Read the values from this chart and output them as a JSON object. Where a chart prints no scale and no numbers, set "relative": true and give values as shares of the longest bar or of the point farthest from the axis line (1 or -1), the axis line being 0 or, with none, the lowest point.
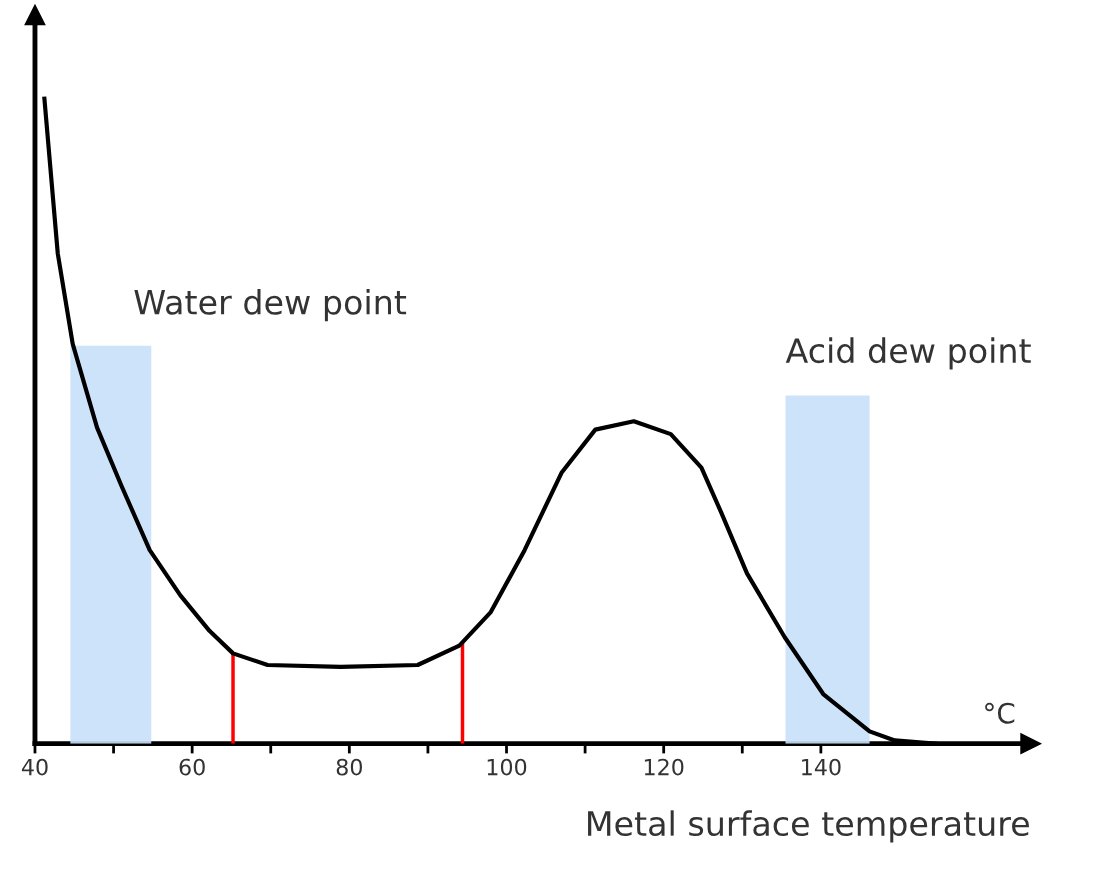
{
  "chart_data": {
    "type": "line",
    "relative": true,
    "xlabel": "Metal surface temperature",
    "annotations": [
      "°C"
    ],
    "x": [
      41.2,
      42.9,
      44.8,
      47.9,
      51.0,
      54.6,
      58.5,
      62.2,
      65.2,
      69.6,
      78.9,
      88.7,
      94.0,
      98.0,
      102.3,
      107.0,
      111.3,
      116.2,
      120.9,
      124.8,
      127.3,
      130.6,
      135.4,
      140.3,
      146.2,
      149.4,
      154.6
    ],
    "series": [
      {
        "color": "#000000",
        "values": [
          1.0,
          0.76,
          0.62,
          0.49,
          0.4,
          0.3,
          0.23,
          0.175,
          0.14,
          0.122,
          0.119,
          0.122,
          0.152,
          0.204,
          0.3,
          0.42,
          0.487,
          0.5,
          0.48,
          0.428,
          0.359,
          0.264,
          0.165,
          0.077,
          0.019,
          0.005,
          0.0
        ]
      }
    ],
    "xlim": [
      40,
      166.7
    ],
    "xticks": [
      40,
      {
        "value": 50,
        "label": null
      },
      60,
      {
        "value": 70,
        "label": null
      },
      80,
      {
        "value": 90,
        "label": null
      },
      100,
      {
        "value": 110,
        "label": null
      },
      120,
      {
        "value": 130,
        "label": null
      },
      140
    ],
    "bands": [
      {
        "axis": "x",
        "from": 44.5,
        "to": 54.8,
        "label": "Water dew point",
        "color": "#c6e0fa"
      },
      {
        "axis": "x",
        "from": 135.5,
        "to": 146.2,
        "label": "Acid dew point",
        "color": "#c6e0fa"
      }
    ],
    "ref_lines": [
      {
        "axis": "x",
        "value": 65.2,
        "color": "#ff0000"
      },
      {
        "axis": "x",
        "value": 94.4,
        "color": "#ff0000"
      }
    ],
    "grid": false,
    "marker": "none",
    "line_style": "solid"
  }
}
